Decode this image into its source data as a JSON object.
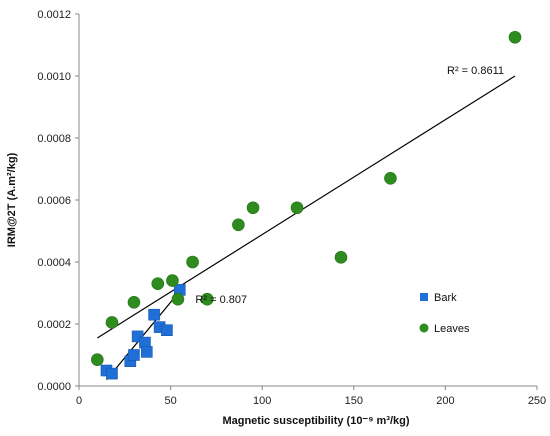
{
  "colors": {
    "bark": "#1f6fd6",
    "leaves": "#2e8b1e",
    "trendline": "#000000",
    "axis": "#888888"
  },
  "chart_data": {
    "type": "scatter",
    "xlabel": "Magnetic susceptibility (10⁻⁹ m³/kg)",
    "ylabel": "IRM@2T  (A.m²/kg)",
    "xlim": [
      0,
      250
    ],
    "ylim": [
      0,
      0.0012
    ],
    "x_ticks": [
      "0",
      "50",
      "100",
      "150",
      "200",
      "250"
    ],
    "y_ticks": [
      "0.0000",
      "0.0002",
      "0.0004",
      "0.0006",
      "0.0008",
      "0.0010",
      "0.0012"
    ],
    "grid": false,
    "legend_position": "right",
    "series": [
      {
        "name": "Bark",
        "marker": "square",
        "color": "#1f6fd6",
        "points": [
          [
            15,
            5e-05
          ],
          [
            18,
            4e-05
          ],
          [
            28,
            8e-05
          ],
          [
            30,
            0.0001
          ],
          [
            32,
            0.00016
          ],
          [
            36,
            0.00014
          ],
          [
            37,
            0.00011
          ],
          [
            41,
            0.00023
          ],
          [
            44,
            0.00019
          ],
          [
            48,
            0.00018
          ],
          [
            55,
            0.00031
          ]
        ],
        "trendline": {
          "x": [
            15,
            57
          ],
          "y": [
            2e-05,
            0.00032
          ],
          "label": "R² = 0.807"
        }
      },
      {
        "name": "Leaves",
        "marker": "circle",
        "color": "#2e8b1e",
        "points": [
          [
            10,
            8.5e-05
          ],
          [
            18,
            0.000205
          ],
          [
            30,
            0.00027
          ],
          [
            43,
            0.00033
          ],
          [
            51,
            0.00034
          ],
          [
            54,
            0.00028
          ],
          [
            62,
            0.0004
          ],
          [
            70,
            0.00028
          ],
          [
            87,
            0.00052
          ],
          [
            95,
            0.000575
          ],
          [
            119,
            0.000575
          ],
          [
            143,
            0.000415
          ],
          [
            170,
            0.00067
          ],
          [
            238,
            0.001125
          ]
        ],
        "trendline": {
          "x": [
            10,
            238
          ],
          "y": [
            0.000155,
            0.001
          ],
          "label": "R² = 0.8611"
        }
      }
    ]
  }
}
